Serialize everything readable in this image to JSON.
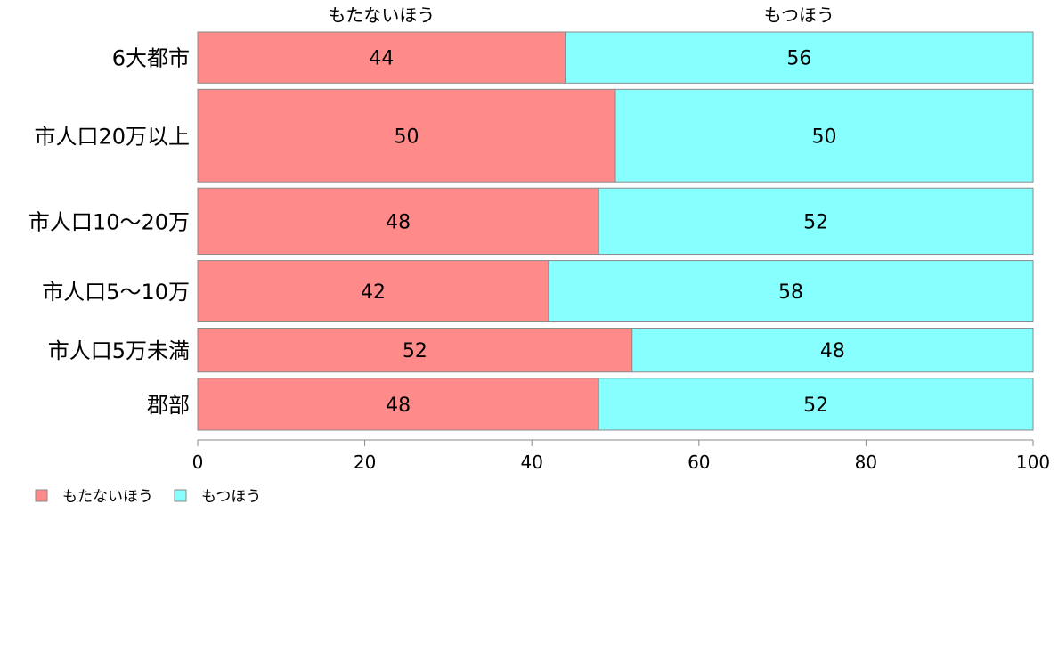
{
  "chart_data": {
    "type": "bar",
    "orientation": "horizontal",
    "stacked": true,
    "percent_stacked": true,
    "categories": [
      "6大都市",
      "市人口20万以上",
      "市人口10〜20万",
      "市人口5〜10万",
      "市人口5万未満",
      "郡部"
    ],
    "series": [
      {
        "name": "もたないほう",
        "values": [
          44,
          50,
          48,
          42,
          52,
          48
        ],
        "color": "#ff8a8a"
      },
      {
        "name": "もつほう",
        "values": [
          56,
          50,
          52,
          58,
          48,
          52
        ],
        "color": "#88ffff"
      }
    ],
    "bar_data_labels": [
      [
        "44",
        "50",
        "48",
        "42",
        "52",
        "48"
      ],
      [
        "56",
        "50",
        "52",
        "58",
        "48",
        "52"
      ]
    ],
    "category_weights": [
      0.64,
      1.16,
      0.83,
      0.77,
      0.55,
      0.65
    ],
    "x_ticks": [
      0,
      20,
      40,
      60,
      80,
      100
    ],
    "x_tick_labels": [
      "0",
      "20",
      "40",
      "60",
      "80",
      "100"
    ],
    "xlim": [
      0,
      100
    ],
    "top_labels": [
      "もたないほう",
      "もつほう"
    ],
    "legend": {
      "position": "bottom-left",
      "entries": [
        "もたないほう",
        "もつほう"
      ]
    },
    "grid": false,
    "title": "",
    "xlabel": "",
    "ylabel": ""
  }
}
